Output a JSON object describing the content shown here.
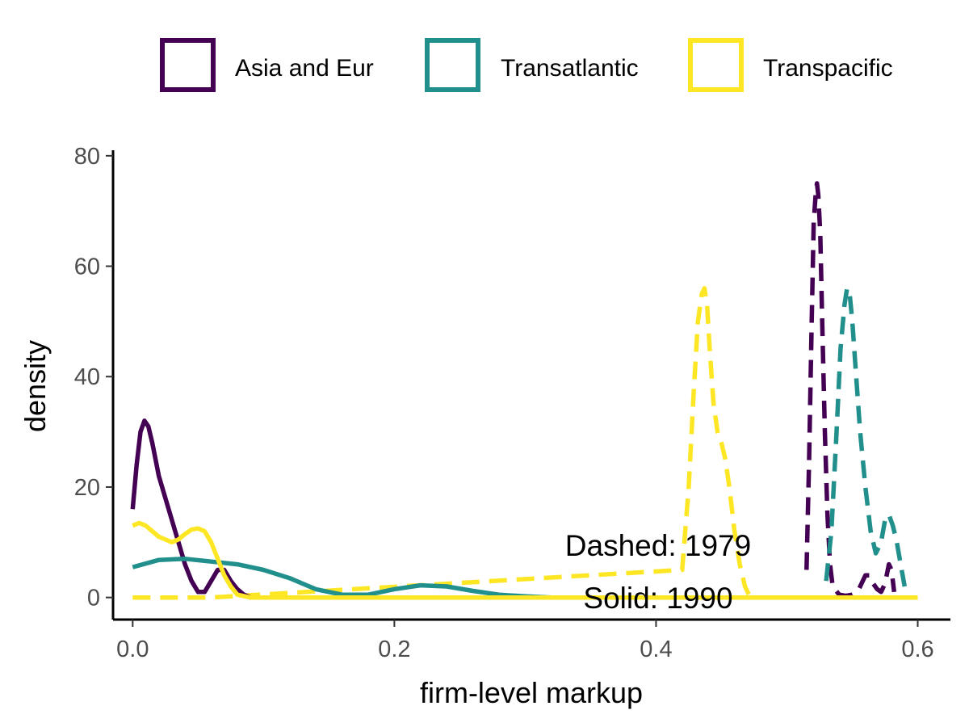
{
  "chart_data": {
    "type": "line",
    "xlabel": "firm-level markup",
    "ylabel": "density",
    "xlim": [
      -0.015,
      0.625
    ],
    "ylim": [
      -4,
      81
    ],
    "x_ticks": [
      0.0,
      0.2,
      0.4,
      0.6
    ],
    "x_tick_labels": [
      "0.0",
      "0.2",
      "0.4",
      "0.6"
    ],
    "y_ticks": [
      0,
      20,
      40,
      60,
      80
    ],
    "y_tick_labels": [
      "0",
      "20",
      "40",
      "60",
      "80"
    ],
    "grid": false,
    "legend_position": "top",
    "legend": [
      {
        "name": "Asia and Eur",
        "color": "#440154"
      },
      {
        "name": "Transatlantic",
        "color": "#21908C"
      },
      {
        "name": "Transpacific",
        "color": "#FDE725"
      }
    ],
    "annotations": [
      "Dashed: 1979",
      "Solid: 1990"
    ],
    "series": [
      {
        "group": "Asia and Eur",
        "year": "1979",
        "linestyle": "dashed",
        "color": "#440154",
        "x": [
          0.515,
          0.517,
          0.519,
          0.5205,
          0.522,
          0.523,
          0.524,
          0.5255,
          0.527,
          0.529,
          0.531,
          0.533,
          0.535,
          0.54,
          0.545,
          0.55,
          0.555,
          0.56,
          0.563,
          0.566,
          0.569,
          0.572,
          0.575,
          0.578,
          0.58,
          0.582
        ],
        "y": [
          5,
          25,
          50,
          68,
          73,
          75,
          73,
          66,
          50,
          30,
          15,
          6,
          2,
          0.5,
          0.3,
          0.5,
          1.5,
          4,
          4,
          2.5,
          1.5,
          1,
          2.5,
          6,
          5,
          1
        ]
      },
      {
        "group": "Transatlantic",
        "year": "1979",
        "linestyle": "dashed",
        "color": "#21908C",
        "x": [
          0.53,
          0.534,
          0.538,
          0.541,
          0.544,
          0.546,
          0.548,
          0.55,
          0.553,
          0.556,
          0.56,
          0.564,
          0.568,
          0.572,
          0.575,
          0.578,
          0.581,
          0.584,
          0.587,
          0.59
        ],
        "y": [
          3,
          12,
          30,
          45,
          53,
          56,
          55,
          50,
          40,
          30,
          20,
          12,
          8,
          10,
          14,
          15,
          13,
          10,
          6,
          2
        ]
      },
      {
        "group": "Transpacific",
        "year": "1979",
        "linestyle": "dashed",
        "color": "#FDE725",
        "x": [
          0.0,
          0.02,
          0.04,
          0.06,
          0.42,
          0.425,
          0.429,
          0.432,
          0.435,
          0.437,
          0.439,
          0.441,
          0.444,
          0.447,
          0.45,
          0.453,
          0.456,
          0.46,
          0.464,
          0.468,
          0.472
        ],
        "y": [
          0,
          0,
          0,
          0,
          5,
          20,
          38,
          50,
          55,
          56,
          53,
          45,
          35,
          30,
          28,
          25,
          20,
          12,
          6,
          2,
          0
        ]
      },
      {
        "group": "Asia and Eur",
        "year": "1990",
        "linestyle": "solid",
        "color": "#440154",
        "x": [
          0.0,
          0.003,
          0.006,
          0.009,
          0.012,
          0.015,
          0.02,
          0.025,
          0.03,
          0.035,
          0.04,
          0.045,
          0.05,
          0.055,
          0.06,
          0.065,
          0.07,
          0.075,
          0.08,
          0.085,
          0.09,
          0.1,
          0.12
        ],
        "y": [
          16,
          24,
          30,
          32,
          31,
          28,
          22,
          18,
          14,
          10,
          6,
          3,
          1,
          1,
          3,
          5,
          5,
          3,
          1.5,
          0.5,
          0,
          0,
          0
        ]
      },
      {
        "group": "Transatlantic",
        "year": "1990",
        "linestyle": "solid",
        "color": "#21908C",
        "x": [
          0.0,
          0.02,
          0.04,
          0.06,
          0.08,
          0.1,
          0.12,
          0.14,
          0.16,
          0.18,
          0.2,
          0.22,
          0.24,
          0.26,
          0.28,
          0.3,
          0.32,
          0.35,
          0.4,
          0.6
        ],
        "y": [
          5.5,
          6.8,
          7,
          6.5,
          6,
          5,
          3.5,
          1.5,
          0.5,
          0.5,
          1.5,
          2.2,
          2,
          1.2,
          0.5,
          0.2,
          0,
          0,
          0,
          0
        ]
      },
      {
        "group": "Transpacific",
        "year": "1990",
        "linestyle": "solid",
        "color": "#FDE725",
        "x": [
          0.0,
          0.005,
          0.01,
          0.015,
          0.02,
          0.025,
          0.03,
          0.035,
          0.04,
          0.045,
          0.05,
          0.055,
          0.06,
          0.065,
          0.07,
          0.075,
          0.08,
          0.09,
          0.1,
          0.2,
          0.4,
          0.6
        ],
        "y": [
          13,
          13.5,
          13,
          12,
          11,
          10.5,
          10,
          10.5,
          11.5,
          12.3,
          12.5,
          12,
          10,
          7,
          4,
          2,
          0.5,
          0,
          0,
          0,
          0,
          0
        ]
      }
    ]
  }
}
